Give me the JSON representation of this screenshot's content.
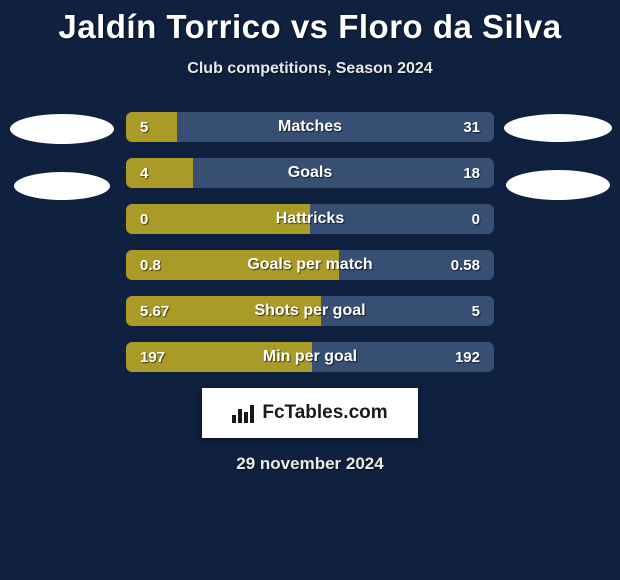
{
  "background_color": "#0f213e",
  "title": {
    "player1": "Jaldín Torrico",
    "vs": "vs",
    "player2": "Floro da Silva",
    "fontsize": 33,
    "color": "#ffffff"
  },
  "subtitle": {
    "text": "Club competitions, Season 2024",
    "fontsize": 16
  },
  "colors": {
    "player1": "#aa9a28",
    "player2": "#384f74",
    "value_text": "#ffffff",
    "label_text": "#ffffff"
  },
  "bars": [
    {
      "label": "Matches",
      "left": "5",
      "right": "31",
      "left_pct": 13.9,
      "right_pct": 86.1
    },
    {
      "label": "Goals",
      "left": "4",
      "right": "18",
      "left_pct": 18.2,
      "right_pct": 81.8
    },
    {
      "label": "Hattricks",
      "left": "0",
      "right": "0",
      "left_pct": 50.0,
      "right_pct": 50.0
    },
    {
      "label": "Goals per match",
      "left": "0.8",
      "right": "0.58",
      "left_pct": 58.0,
      "right_pct": 42.0
    },
    {
      "label": "Shots per goal",
      "left": "5.67",
      "right": "5",
      "left_pct": 53.1,
      "right_pct": 46.9
    },
    {
      "label": "Min per goal",
      "left": "197",
      "right": "192",
      "left_pct": 50.6,
      "right_pct": 49.4
    }
  ],
  "bar_style": {
    "height": 30,
    "gap": 16,
    "border_radius": 6,
    "value_fontsize": 15,
    "label_fontsize": 16
  },
  "logo": {
    "text": "FcTables.com",
    "bg": "#ffffff",
    "fg": "#1a1a1a"
  },
  "date": "29 november 2024"
}
